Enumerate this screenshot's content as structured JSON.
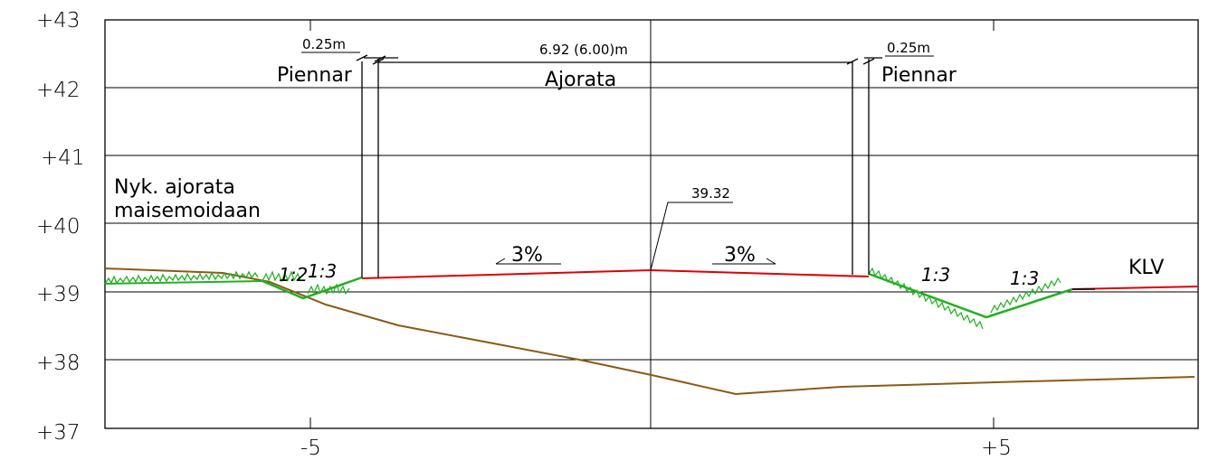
{
  "drawing": {
    "y_axis_labels": [
      "+43",
      "+42",
      "+41",
      "+40",
      "+39",
      "+38",
      "+37"
    ],
    "x_axis_labels": [
      "-5",
      "+5"
    ],
    "left_shoulder": {
      "width": "0.25m",
      "name": "Piennar"
    },
    "carriageway": {
      "width": "6.92 (6.00)m",
      "name": "Ajorata"
    },
    "right_shoulder": {
      "width": "0.25m",
      "name": "Piennar"
    },
    "existing_road_note": [
      "Nyk. ajorata",
      "maisemoidaan"
    ],
    "center_elevation": "39.32",
    "crossfall_left": "3%",
    "crossfall_right": "3%",
    "slopes": [
      "1:2",
      "1:3",
      "1:3",
      "1:3"
    ],
    "right_label": "KLV",
    "colors": {
      "design_line": "#e00000",
      "existing_ground": "#8b5a14",
      "grass": "#22b022",
      "grid": "#000000"
    }
  }
}
